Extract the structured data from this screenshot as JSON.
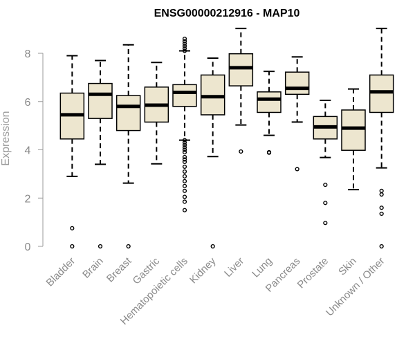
{
  "chart_data": {
    "type": "boxplot",
    "title": "ENSG00000212916 - MAP10",
    "ylabel": "Expression",
    "xlabel": "",
    "ylim": [
      0,
      9.1
    ],
    "yticks": [
      0,
      2,
      4,
      6,
      8
    ],
    "grid": false,
    "colors": {
      "box_fill": "#ede6cf",
      "box_stroke": "#000000",
      "axis": "#9a9a9a"
    },
    "categories": [
      "Bladder",
      "Brain",
      "Breast",
      "Gastric",
      "Hematopoietic cells",
      "Kidney",
      "Liver",
      "Lung",
      "Pancreas",
      "Prostate",
      "Skin",
      "Unknown / Other"
    ],
    "boxes": [
      {
        "q1": 4.45,
        "median": 5.45,
        "q3": 6.35,
        "whisker_low": 2.9,
        "whisker_high": 7.9,
        "outliers": [
          0.75,
          0.0
        ]
      },
      {
        "q1": 5.3,
        "median": 6.3,
        "q3": 6.75,
        "whisker_low": 3.4,
        "whisker_high": 7.7,
        "outliers": [
          0.0
        ]
      },
      {
        "q1": 4.8,
        "median": 5.8,
        "q3": 6.25,
        "whisker_low": 2.62,
        "whisker_high": 8.35,
        "outliers": [
          0.0
        ]
      },
      {
        "q1": 5.15,
        "median": 5.85,
        "q3": 6.6,
        "whisker_low": 3.42,
        "whisker_high": 7.62,
        "outliers": []
      },
      {
        "q1": 5.8,
        "median": 6.38,
        "q3": 6.7,
        "whisker_low": 4.4,
        "whisker_high": 8.1,
        "outliers": [
          8.6,
          8.5,
          8.4,
          8.3,
          8.2,
          8.1,
          4.4,
          4.3,
          4.2,
          4.1,
          4.0,
          3.9,
          3.7,
          3.6,
          3.5,
          3.3,
          3.1,
          2.9,
          2.7,
          2.5,
          2.3,
          2.05,
          1.85,
          1.5
        ]
      },
      {
        "q1": 5.45,
        "median": 6.2,
        "q3": 7.1,
        "whisker_low": 3.72,
        "whisker_high": 7.8,
        "outliers": [
          0.0
        ]
      },
      {
        "q1": 6.65,
        "median": 7.4,
        "q3": 7.98,
        "whisker_low": 5.03,
        "whisker_high": 9.03,
        "outliers": [
          3.93
        ]
      },
      {
        "q1": 5.55,
        "median": 6.1,
        "q3": 6.4,
        "whisker_low": 4.6,
        "whisker_high": 7.25,
        "outliers": [
          3.9,
          3.88
        ]
      },
      {
        "q1": 6.3,
        "median": 6.55,
        "q3": 7.22,
        "whisker_low": 5.15,
        "whisker_high": 7.85,
        "outliers": [
          3.2
        ]
      },
      {
        "q1": 4.45,
        "median": 4.95,
        "q3": 5.38,
        "whisker_low": 3.68,
        "whisker_high": 6.05,
        "outliers": [
          2.55,
          1.8,
          0.97
        ]
      },
      {
        "q1": 3.98,
        "median": 4.9,
        "q3": 5.65,
        "whisker_low": 2.35,
        "whisker_high": 6.52,
        "outliers": []
      },
      {
        "q1": 5.55,
        "median": 6.4,
        "q3": 7.1,
        "whisker_low": 3.25,
        "whisker_high": 9.03,
        "outliers": [
          2.3,
          2.15,
          1.6,
          1.35,
          0.0
        ]
      }
    ]
  }
}
